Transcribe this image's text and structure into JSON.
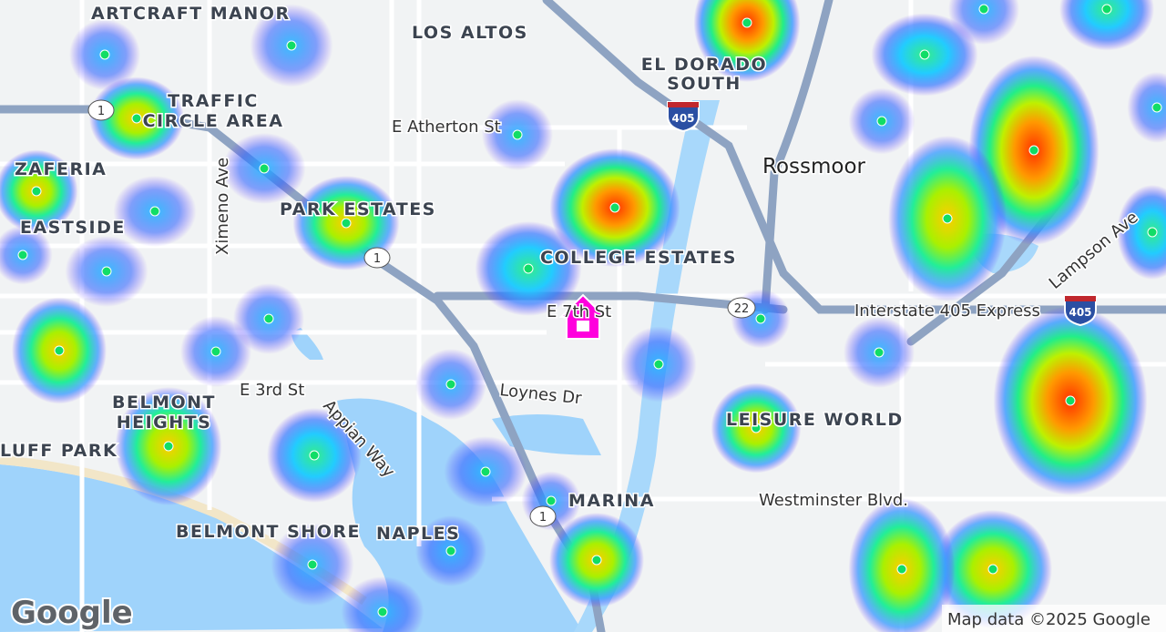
{
  "map": {
    "places": [
      "ARTCRAFT MANOR",
      "LOS ALTOS",
      "EL DORADO",
      "SOUTH",
      "TRAFFIC",
      "CIRCLE AREA",
      "Rossmoor",
      "ZAFERIA",
      "PARK ESTATES",
      "EASTSIDE",
      "COLLEGE ESTATES",
      "BELMONT",
      "HEIGHTS",
      "LEISURE WORLD",
      "LUFF PARK",
      "MARINA",
      "BELMONT SHORE",
      "NAPLES"
    ],
    "streets": [
      "E Atherton St",
      "Ximeno Ave",
      "E 7th St",
      "Interstate 405 Express",
      "Lampson Ave",
      "E 3rd St",
      "Loynes Dr",
      "Appian Way",
      "Westminster Blvd."
    ],
    "shields": [
      "1",
      "405",
      "1",
      "22",
      "405",
      "1"
    ],
    "logo": "Google",
    "attribution": "Map data ©2025 Google"
  }
}
